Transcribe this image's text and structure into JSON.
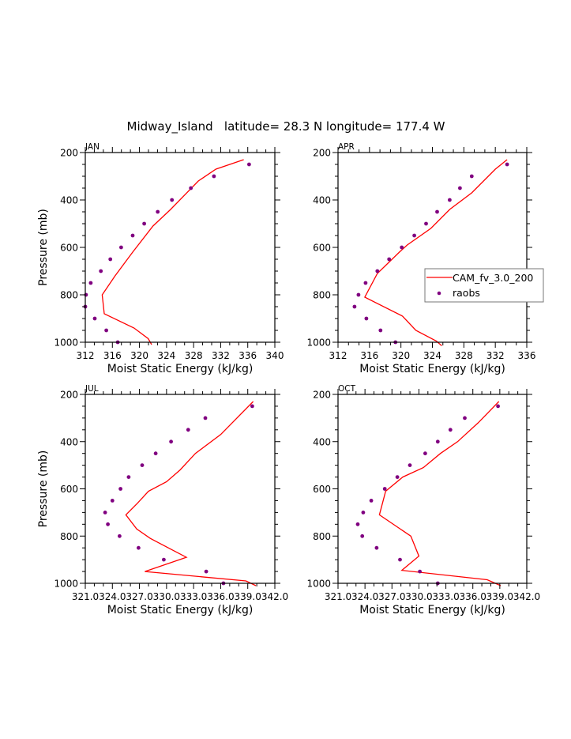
{
  "title": "Midway_Island   latitude= 28.3 N longitude= 177.4 W",
  "legend": {
    "position": "right-middle of APR panel",
    "model_label": "CAM_fv_3.0_200",
    "obs_label": "raobs"
  },
  "colors": {
    "model": "#ff0000",
    "obs": "#800080",
    "axis": "#000000"
  },
  "chart_data": [
    {
      "type": "line",
      "title": "JAN",
      "xlabel": "Moist Static Energy (kJ/kg)",
      "ylabel": "Pressure (mb)",
      "xlim": [
        312,
        340
      ],
      "ylim": [
        1000,
        200
      ],
      "xticks": [
        312,
        316,
        320,
        324,
        328,
        332,
        336,
        340
      ],
      "xtick_labels": [
        "312",
        "316",
        "320",
        "324",
        "328",
        "332",
        "336",
        "340"
      ],
      "yticks": [
        200,
        400,
        600,
        800,
        1000
      ],
      "series": [
        {
          "name": "CAM_fv_3.0_200",
          "kind": "line",
          "points": [
            [
              335.4,
              230
            ],
            [
              331.3,
              270
            ],
            [
              328.7,
              320
            ],
            [
              324.6,
              440
            ],
            [
              322.0,
              510
            ],
            [
              319.0,
              620
            ],
            [
              316.4,
              720
            ],
            [
              314.5,
              800
            ],
            [
              314.8,
              880
            ],
            [
              319.2,
              940
            ],
            [
              321.3,
              985
            ],
            [
              321.8,
              1010
            ]
          ]
        },
        {
          "name": "raobs",
          "kind": "scatter",
          "points": [
            [
              336.2,
              250
            ],
            [
              331.0,
              300
            ],
            [
              327.6,
              350
            ],
            [
              324.8,
              400
            ],
            [
              322.7,
              450
            ],
            [
              320.7,
              500
            ],
            [
              319.0,
              550
            ],
            [
              317.3,
              600
            ],
            [
              315.7,
              650
            ],
            [
              314.3,
              700
            ],
            [
              312.8,
              750
            ],
            [
              312.1,
              800
            ],
            [
              312.0,
              850
            ],
            [
              313.4,
              900
            ],
            [
              315.1,
              950
            ],
            [
              316.8,
              1000
            ]
          ]
        }
      ]
    },
    {
      "type": "line",
      "title": "APR",
      "xlabel": "Moist Static Energy (kJ/kg)",
      "ylabel": "",
      "xlim": [
        312,
        336
      ],
      "ylim": [
        1000,
        200
      ],
      "xticks": [
        312,
        316,
        320,
        324,
        328,
        332,
        336
      ],
      "xtick_labels": [
        "312",
        "316",
        "320",
        "324",
        "328",
        "332",
        "336"
      ],
      "yticks": [
        200,
        400,
        600,
        800,
        1000
      ],
      "series": [
        {
          "name": "CAM_fv_3.0_200",
          "kind": "line",
          "points": [
            [
              333.5,
              230
            ],
            [
              332.0,
              270
            ],
            [
              329.0,
              370
            ],
            [
              326.2,
              440
            ],
            [
              323.8,
              520
            ],
            [
              320.8,
              590
            ],
            [
              319.8,
              620
            ],
            [
              317.0,
              710
            ],
            [
              315.4,
              810
            ],
            [
              320.2,
              890
            ],
            [
              321.9,
              950
            ],
            [
              324.5,
              995
            ],
            [
              325.2,
              1015
            ]
          ]
        },
        {
          "name": "raobs",
          "kind": "scatter",
          "points": [
            [
              333.5,
              250
            ],
            [
              329.0,
              300
            ],
            [
              327.5,
              350
            ],
            [
              326.2,
              400
            ],
            [
              324.6,
              450
            ],
            [
              323.2,
              500
            ],
            [
              321.7,
              550
            ],
            [
              320.1,
              600
            ],
            [
              318.5,
              650
            ],
            [
              317.0,
              700
            ],
            [
              315.5,
              750
            ],
            [
              314.6,
              800
            ],
            [
              314.1,
              850
            ],
            [
              315.6,
              900
            ],
            [
              317.4,
              950
            ],
            [
              319.3,
              1000
            ]
          ]
        }
      ]
    },
    {
      "type": "line",
      "title": "JUL",
      "xlabel": "Moist Static Energy (kJ/kg)",
      "ylabel": "Pressure (mb)",
      "xlim": [
        321,
        342
      ],
      "ylim": [
        1000,
        200
      ],
      "xticks": [
        321,
        324,
        327,
        330,
        333,
        336,
        339,
        342
      ],
      "xtick_labels": [
        "321.0",
        "324.0",
        "327.0",
        "330.0",
        "333.0",
        "336.0",
        "339.0",
        "342.0"
      ],
      "yticks": [
        200,
        400,
        600,
        800,
        1000
      ],
      "series": [
        {
          "name": "CAM_fv_3.0_200",
          "kind": "line",
          "points": [
            [
              339.6,
              230
            ],
            [
              336.0,
              370
            ],
            [
              333.2,
              450
            ],
            [
              331.5,
              520
            ],
            [
              330.0,
              570
            ],
            [
              328.0,
              610
            ],
            [
              326.8,
              660
            ],
            [
              325.5,
              710
            ],
            [
              326.7,
              770
            ],
            [
              328.2,
              810
            ],
            [
              330.7,
              860
            ],
            [
              332.2,
              890
            ],
            [
              327.6,
              950
            ],
            [
              338.8,
              990
            ],
            [
              339.9,
              1010
            ]
          ]
        },
        {
          "name": "raobs",
          "kind": "scatter",
          "points": [
            [
              339.5,
              250
            ],
            [
              334.3,
              300
            ],
            [
              332.4,
              350
            ],
            [
              330.5,
              400
            ],
            [
              328.8,
              450
            ],
            [
              327.3,
              500
            ],
            [
              325.8,
              550
            ],
            [
              324.9,
              600
            ],
            [
              324.0,
              650
            ],
            [
              323.2,
              700
            ],
            [
              323.5,
              750
            ],
            [
              324.8,
              800
            ],
            [
              326.9,
              850
            ],
            [
              329.7,
              900
            ],
            [
              334.4,
              950
            ],
            [
              336.3,
              1000
            ]
          ]
        }
      ]
    },
    {
      "type": "line",
      "title": "OCT",
      "xlabel": "Moist Static Energy (kJ/kg)",
      "ylabel": "",
      "xlim": [
        321,
        342
      ],
      "ylim": [
        1000,
        200
      ],
      "xticks": [
        321,
        324,
        327,
        330,
        333,
        336,
        339,
        342
      ],
      "xtick_labels": [
        "321.0",
        "324.0",
        "327.0",
        "330.0",
        "333.0",
        "336.0",
        "339.0",
        "342.0"
      ],
      "yticks": [
        200,
        400,
        600,
        800,
        1000
      ],
      "series": [
        {
          "name": "CAM_fv_3.0_200",
          "kind": "line",
          "points": [
            [
              338.9,
              230
            ],
            [
              336.6,
              320
            ],
            [
              334.3,
              400
            ],
            [
              332.4,
              450
            ],
            [
              330.5,
              510
            ],
            [
              328.2,
              550
            ],
            [
              326.3,
              610
            ],
            [
              325.6,
              710
            ],
            [
              329.1,
              800
            ],
            [
              330.0,
              885
            ],
            [
              328.1,
              945
            ],
            [
              337.6,
              985
            ],
            [
              339.1,
              1010
            ]
          ]
        },
        {
          "name": "raobs",
          "kind": "scatter",
          "points": [
            [
              338.8,
              250
            ],
            [
              335.1,
              300
            ],
            [
              333.5,
              350
            ],
            [
              332.1,
              400
            ],
            [
              330.7,
              450
            ],
            [
              329.0,
              500
            ],
            [
              327.6,
              550
            ],
            [
              326.2,
              600
            ],
            [
              324.7,
              650
            ],
            [
              323.8,
              700
            ],
            [
              323.2,
              750
            ],
            [
              323.7,
              800
            ],
            [
              325.3,
              850
            ],
            [
              327.9,
              900
            ],
            [
              330.1,
              950
            ],
            [
              332.1,
              1000
            ]
          ]
        }
      ]
    }
  ]
}
